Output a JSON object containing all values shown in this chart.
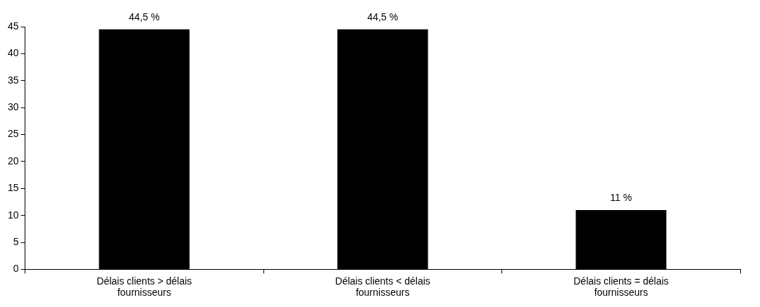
{
  "chart_data": {
    "type": "bar",
    "categories": [
      "Délais clients > délais fournisseurs",
      "Délais clients < délais fournisseurs",
      "Délais clients = délais fournisseurs"
    ],
    "values": [
      44.5,
      44.5,
      11
    ],
    "value_labels": [
      "44,5 %",
      "44,5 %",
      "11 %"
    ],
    "color": "#000000",
    "ylim": [
      0,
      45
    ],
    "yticks": [
      0,
      5,
      10,
      15,
      20,
      25,
      30,
      35,
      40,
      45
    ],
    "grid": false,
    "legend": false
  }
}
